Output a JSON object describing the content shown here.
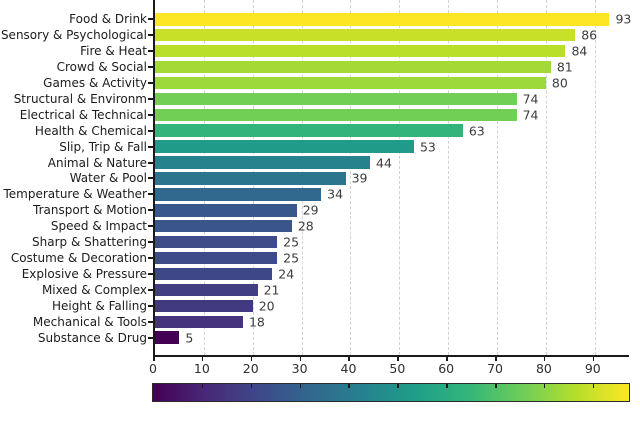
{
  "chart_data": {
    "type": "bar",
    "orientation": "horizontal",
    "categories": [
      "Food & Drink",
      "Sensory & Psychological",
      "Fire & Heat",
      "Crowd & Social",
      "Games & Activity",
      "Structural & Environm",
      "Electrical & Technical",
      "Health & Chemical",
      "Slip, Trip & Fall",
      "Animal & Nature",
      "Water & Pool",
      "Temperature & Weather",
      "Transport & Motion",
      "Speed & Impact",
      "Sharp & Shattering",
      "Costume & Decoration",
      "Explosive & Pressure",
      "Mixed & Complex",
      "Height & Falling",
      "Mechanical & Tools",
      "Substance & Drug"
    ],
    "values": [
      93,
      86,
      84,
      81,
      80,
      74,
      74,
      63,
      53,
      44,
      39,
      34,
      29,
      28,
      25,
      25,
      24,
      21,
      20,
      18,
      5
    ],
    "bar_colors": [
      "#fde725",
      "#c9e029",
      "#badf2b",
      "#a4da36",
      "#9dd93a",
      "#71cf56",
      "#71cf56",
      "#33b47b",
      "#209b8a",
      "#26838e",
      "#2b758e",
      "#31688e",
      "#38588b",
      "#395589",
      "#3d4b89",
      "#3d4b89",
      "#3e4888",
      "#413e83",
      "#423a81",
      "#45337e",
      "#440154"
    ],
    "value_labels_shown": true,
    "xlim": [
      0,
      97
    ],
    "xticks": [
      0,
      10,
      20,
      30,
      40,
      50,
      60,
      70,
      80,
      90
    ],
    "grid": "vertical-dashed",
    "legend": "none",
    "colormap": "viridis",
    "colorbar": {
      "shown": true,
      "position": "bottom",
      "gradient_stops": [
        "#440154",
        "#482878",
        "#3e4989",
        "#31688e",
        "#26828e",
        "#1f9e89",
        "#35b779",
        "#6ece58",
        "#b5de2b",
        "#fde725"
      ],
      "tick_values": [
        10,
        20,
        30,
        40,
        50,
        60,
        70,
        80,
        90
      ]
    }
  },
  "colors": {
    "background": "#ffffff",
    "spine": "#1a1a1a",
    "grid": "#d2d2d2",
    "category_label": "#1c1c1c",
    "value_label": "#3d3d3d",
    "tick_label": "#2e2e2e",
    "colorbar_border": "#2b2b2b"
  }
}
